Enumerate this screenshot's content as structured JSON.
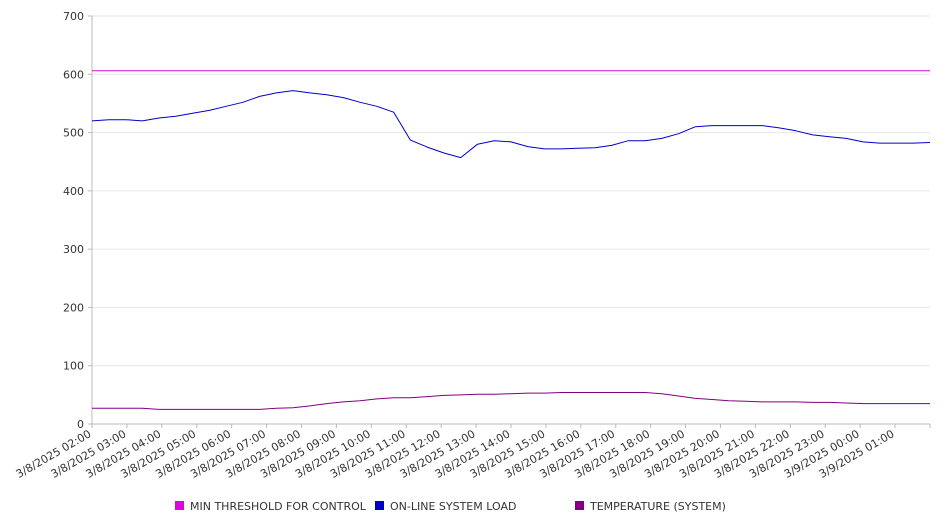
{
  "chart_data": {
    "type": "line",
    "title": "",
    "xlabel": "",
    "ylabel": "",
    "ylim": [
      0,
      700
    ],
    "yticks": [
      0,
      100,
      200,
      300,
      400,
      500,
      600,
      700
    ],
    "grid": true,
    "legend_position": "bottom",
    "x_ticks": [
      "3/8/2025 02:00",
      "3/8/2025 03:00",
      "3/8/2025 04:00",
      "3/8/2025 05:00",
      "3/8/2025 06:00",
      "3/8/2025 07:00",
      "3/8/2025 08:00",
      "3/8/2025 09:00",
      "3/8/2025 10:00",
      "3/8/2025 11:00",
      "3/8/2025 12:00",
      "3/8/2025 13:00",
      "3/8/2025 14:00",
      "3/8/2025 15:00",
      "3/8/2025 16:00",
      "3/8/2025 17:00",
      "3/8/2025 18:00",
      "3/8/2025 19:00",
      "3/8/2025 20:00",
      "3/8/2025 21:00",
      "3/8/2025 22:00",
      "3/8/2025 23:00",
      "3/9/2025 00:00",
      "3/9/2025 01:00"
    ],
    "x": [
      "3/8/2025 02:00",
      "3/8/2025 02:30",
      "3/8/2025 03:00",
      "3/8/2025 03:30",
      "3/8/2025 04:00",
      "3/8/2025 04:30",
      "3/8/2025 05:00",
      "3/8/2025 05:30",
      "3/8/2025 06:00",
      "3/8/2025 06:30",
      "3/8/2025 07:00",
      "3/8/2025 07:30",
      "3/8/2025 08:00",
      "3/8/2025 08:30",
      "3/8/2025 09:00",
      "3/8/2025 09:30",
      "3/8/2025 10:00",
      "3/8/2025 10:30",
      "3/8/2025 11:00",
      "3/8/2025 11:05",
      "3/8/2025 11:30",
      "3/8/2025 12:00",
      "3/8/2025 12:30",
      "3/8/2025 13:00",
      "3/8/2025 13:15",
      "3/8/2025 13:30",
      "3/8/2025 14:00",
      "3/8/2025 14:30",
      "3/8/2025 15:00",
      "3/8/2025 15:30",
      "3/8/2025 16:00",
      "3/8/2025 16:30",
      "3/8/2025 17:00",
      "3/8/2025 17:30",
      "3/8/2025 18:00",
      "3/8/2025 18:30",
      "3/8/2025 19:00",
      "3/8/2025 19:30",
      "3/8/2025 20:00",
      "3/8/2025 20:30",
      "3/8/2025 21:00",
      "3/8/2025 21:30",
      "3/8/2025 22:00",
      "3/8/2025 22:30",
      "3/8/2025 23:00",
      "3/8/2025 23:30",
      "3/9/2025 00:00",
      "3/9/2025 00:30",
      "3/9/2025 01:00",
      "3/9/2025 01:30",
      "3/9/2025 02:00"
    ],
    "series": [
      {
        "name": "MIN THRESHOLD FOR CONTROL",
        "color": "#e000e0",
        "values": [
          606,
          606,
          606,
          606,
          606,
          606,
          606,
          606,
          606,
          606,
          606,
          606,
          606,
          606,
          606,
          606,
          606,
          606,
          606,
          606,
          606,
          606,
          606,
          606,
          606,
          606,
          606,
          606,
          606,
          606,
          606,
          606,
          606,
          606,
          606,
          606,
          606,
          606,
          606,
          606,
          606,
          606,
          606,
          606,
          606,
          606,
          606,
          606,
          606,
          606,
          606
        ]
      },
      {
        "name": "ON-LINE SYSTEM LOAD",
        "color": "#0000cc",
        "values": [
          520,
          522,
          522,
          520,
          525,
          528,
          533,
          538,
          545,
          552,
          562,
          568,
          572,
          568,
          565,
          560,
          552,
          545,
          535,
          487,
          475,
          465,
          457,
          480,
          486,
          484,
          476,
          472,
          472,
          473,
          474,
          478,
          486,
          486,
          490,
          498,
          510,
          512,
          512,
          512,
          512,
          508,
          503,
          496,
          493,
          490,
          484,
          482,
          482,
          482,
          483
        ]
      },
      {
        "name": "TEMPERATURE (SYSTEM)",
        "color": "#800080",
        "values": [
          27,
          27,
          27,
          27,
          25,
          25,
          25,
          25,
          25,
          25,
          25,
          27,
          28,
          31,
          35,
          38,
          40,
          43,
          45,
          45,
          47,
          49,
          50,
          51,
          51,
          52,
          53,
          53,
          54,
          54,
          54,
          54,
          54,
          54,
          52,
          48,
          44,
          42,
          40,
          39,
          38,
          38,
          38,
          37,
          37,
          36,
          35,
          35,
          35,
          35,
          35
        ]
      }
    ]
  }
}
